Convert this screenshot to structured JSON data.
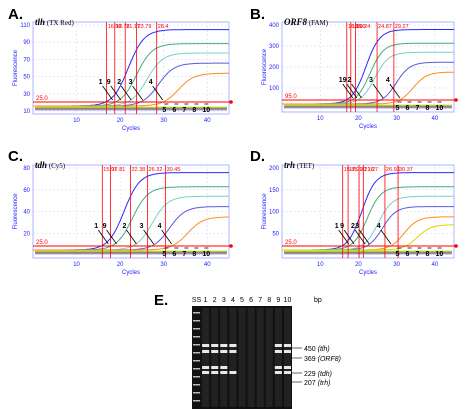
{
  "panels": [
    {
      "letter": "A.",
      "target": "tlh",
      "dye": "(TX Red)",
      "ct_values": [
        "16.90",
        "18.78",
        "21.17",
        "23.79",
        "28.4"
      ],
      "threshold": "25.0",
      "sample_labels": [
        "1",
        "9",
        "2",
        "3",
        "4",
        "5",
        "6",
        "7",
        "8",
        "10"
      ],
      "y_ticks": [
        "110",
        "90",
        "70",
        "50",
        "30",
        "10"
      ],
      "x_ticks": [
        "10",
        "20",
        "30",
        "40"
      ],
      "xlabel": "Cycles",
      "ylabel": "Fluorescence"
    },
    {
      "letter": "B.",
      "target": "ORF8",
      "dye": "(FAM)",
      "ct_values": [
        "16.95",
        "18.00",
        "19.24",
        "24.87",
        "29.27"
      ],
      "threshold": "95.0",
      "sample_labels": [
        "1",
        "9",
        "2",
        "3",
        "4",
        "5",
        "6",
        "7",
        "8",
        "10"
      ],
      "y_ticks": [
        "400",
        "300",
        "200",
        "100"
      ],
      "x_ticks": [
        "10",
        "20",
        "30",
        "40"
      ],
      "xlabel": "Cycles",
      "ylabel": "Fluorescence"
    },
    {
      "letter": "C.",
      "target": "tdh",
      "dye": "(Cy5)",
      "ct_values": [
        "15.91",
        "17.81",
        "22.38",
        "26.32",
        "30.45"
      ],
      "threshold": "25.0",
      "sample_labels": [
        "1",
        "9",
        "2",
        "3",
        "4",
        "5",
        "6",
        "7",
        "8",
        "10"
      ],
      "y_ticks": [
        "80",
        "60",
        "40",
        "20"
      ],
      "x_ticks": [
        "10",
        "20",
        "30",
        "40"
      ],
      "xlabel": "Cycles",
      "ylabel": "Fluorescence"
    },
    {
      "letter": "D.",
      "target": "trh",
      "dye": "(TET)",
      "ct_values": [
        "15.88",
        "17.29",
        "20.16",
        "21.27",
        "26.93",
        "30.37"
      ],
      "threshold": "25.0",
      "sample_labels": [
        "1",
        "9",
        "2",
        "3",
        "4",
        "5",
        "6",
        "7",
        "8",
        "10"
      ],
      "y_ticks": [
        "200",
        "150",
        "100",
        "50"
      ],
      "x_ticks": [
        "10",
        "20",
        "30",
        "40"
      ],
      "xlabel": "Cycles",
      "ylabel": "Fluorescence"
    }
  ],
  "gel": {
    "letter": "E.",
    "lane_labels": [
      "SS",
      "1",
      "2",
      "3",
      "4",
      "5",
      "6",
      "7",
      "8",
      "9",
      "10"
    ],
    "unit": "bp",
    "bands": [
      {
        "size": "450",
        "gene": "(tlh)"
      },
      {
        "size": "369",
        "gene": "(ORF8)"
      },
      {
        "size": "229",
        "gene": "(tdh)"
      },
      {
        "size": "207",
        "gene": "(trh)"
      }
    ]
  },
  "colors": {
    "ct_line": "#ff0000",
    "threshold": "#ff0000",
    "axis": "#1a1aff",
    "curves": [
      "#2a2aff",
      "#3fae7a",
      "#7bd0c8",
      "#5a5ad8",
      "#ff8a1a",
      "#d8d800",
      "#20b020",
      "#9a2a2a",
      "#8888ff"
    ]
  },
  "chart_data": [
    {
      "type": "line",
      "target": "tlh",
      "x": [
        0,
        10,
        20,
        30,
        40
      ],
      "ylim": [
        10,
        110
      ],
      "threshold": 25.0,
      "ct": [
        16.9,
        18.78,
        21.17,
        23.79,
        28.4
      ]
    },
    {
      "type": "line",
      "target": "ORF8",
      "x": [
        0,
        10,
        20,
        30,
        40
      ],
      "ylim": [
        0,
        400
      ],
      "threshold": 95.0,
      "ct": [
        16.95,
        18.0,
        19.24,
        24.87,
        29.27
      ]
    },
    {
      "type": "line",
      "target": "tdh",
      "x": [
        0,
        10,
        20,
        30,
        40
      ],
      "ylim": [
        0,
        80
      ],
      "threshold": 25.0,
      "ct": [
        15.91,
        17.81,
        22.38,
        26.32,
        30.45
      ]
    },
    {
      "type": "line",
      "target": "trh",
      "x": [
        0,
        10,
        20,
        30,
        40
      ],
      "ylim": [
        0,
        200
      ],
      "threshold": 25.0,
      "ct": [
        15.88,
        17.29,
        20.16,
        21.27,
        26.93,
        30.37
      ]
    }
  ]
}
